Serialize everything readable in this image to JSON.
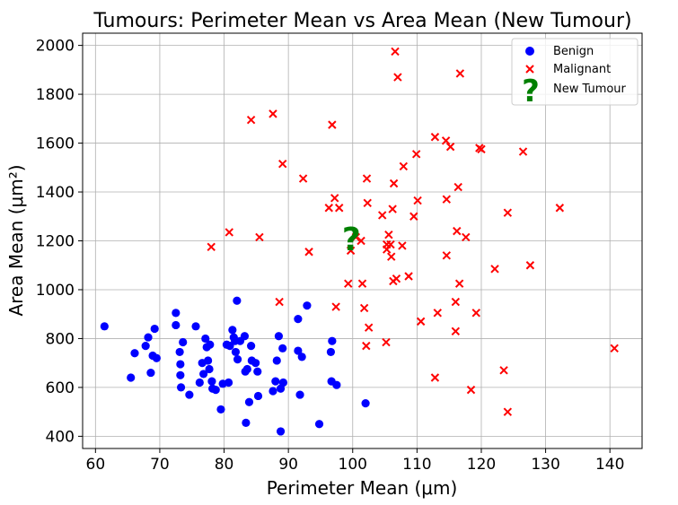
{
  "chart_data": {
    "type": "scatter",
    "title": "Tumours: Perimeter Mean vs Area Mean (New Tumour)",
    "xlabel": "Perimeter Mean (μm)",
    "ylabel": "Area Mean (μm²)",
    "xlim": [
      58,
      145
    ],
    "ylim": [
      350,
      2050
    ],
    "xticks": [
      60,
      70,
      80,
      90,
      100,
      110,
      120,
      130,
      140
    ],
    "yticks": [
      400,
      600,
      800,
      1000,
      1200,
      1400,
      1600,
      1800,
      2000
    ],
    "grid": true,
    "legend_position": "top-right",
    "series": [
      {
        "name": "Benign",
        "marker": "circle",
        "color": "#0000ff",
        "points": [
          [
            61.4,
            850
          ],
          [
            65.5,
            640
          ],
          [
            66.1,
            740
          ],
          [
            67.8,
            770
          ],
          [
            68.2,
            805
          ],
          [
            68.6,
            660
          ],
          [
            68.9,
            730
          ],
          [
            69.2,
            840
          ],
          [
            69.5,
            720
          ],
          [
            72.5,
            905
          ],
          [
            72.5,
            855
          ],
          [
            73.1,
            745
          ],
          [
            73.2,
            695
          ],
          [
            73.2,
            650
          ],
          [
            73.3,
            600
          ],
          [
            73.6,
            785
          ],
          [
            74.6,
            570
          ],
          [
            75.6,
            850
          ],
          [
            76.2,
            620
          ],
          [
            76.6,
            700
          ],
          [
            76.8,
            655
          ],
          [
            77.1,
            800
          ],
          [
            77.3,
            765
          ],
          [
            77.5,
            710
          ],
          [
            77.7,
            675
          ],
          [
            77.8,
            775
          ],
          [
            78.1,
            625
          ],
          [
            78.2,
            595
          ],
          [
            78.7,
            590
          ],
          [
            79.5,
            510
          ],
          [
            79.8,
            615
          ],
          [
            80.4,
            775
          ],
          [
            80.7,
            620
          ],
          [
            80.9,
            770
          ],
          [
            81.3,
            835
          ],
          [
            81.5,
            805
          ],
          [
            81.7,
            790
          ],
          [
            81.8,
            745
          ],
          [
            82.0,
            955
          ],
          [
            82.1,
            715
          ],
          [
            82.5,
            790
          ],
          [
            83.2,
            810
          ],
          [
            83.3,
            665
          ],
          [
            83.4,
            455
          ],
          [
            83.6,
            675
          ],
          [
            83.9,
            540
          ],
          [
            84.2,
            770
          ],
          [
            84.3,
            710
          ],
          [
            84.9,
            700
          ],
          [
            85.2,
            665
          ],
          [
            85.3,
            565
          ],
          [
            87.6,
            585
          ],
          [
            88.0,
            625
          ],
          [
            88.2,
            710
          ],
          [
            88.5,
            810
          ],
          [
            88.8,
            420
          ],
          [
            88.8,
            595
          ],
          [
            89.1,
            760
          ],
          [
            89.2,
            620
          ],
          [
            91.5,
            880
          ],
          [
            91.5,
            750
          ],
          [
            91.8,
            570
          ],
          [
            92.1,
            725
          ],
          [
            92.9,
            935
          ],
          [
            94.8,
            450
          ],
          [
            96.6,
            745
          ],
          [
            96.7,
            625
          ],
          [
            96.8,
            790
          ],
          [
            97.5,
            610
          ],
          [
            102.0,
            535
          ]
        ]
      },
      {
        "name": "Malignant",
        "marker": "x",
        "color": "#ff0000",
        "points": [
          [
            78.0,
            1175
          ],
          [
            80.8,
            1235
          ],
          [
            84.2,
            1695
          ],
          [
            85.5,
            1215
          ],
          [
            87.6,
            1720
          ],
          [
            88.6,
            950
          ],
          [
            89.1,
            1515
          ],
          [
            92.3,
            1455
          ],
          [
            93.2,
            1155
          ],
          [
            96.3,
            1335
          ],
          [
            96.8,
            1675
          ],
          [
            97.2,
            1375
          ],
          [
            97.4,
            930
          ],
          [
            97.9,
            1335
          ],
          [
            99.3,
            1025
          ],
          [
            99.7,
            1160
          ],
          [
            100.5,
            1215
          ],
          [
            101.3,
            1200
          ],
          [
            101.5,
            1025
          ],
          [
            101.8,
            925
          ],
          [
            102.1,
            770
          ],
          [
            102.2,
            1455
          ],
          [
            102.3,
            1355
          ],
          [
            102.5,
            845
          ],
          [
            104.6,
            1305
          ],
          [
            105.2,
            785
          ],
          [
            105.3,
            1185
          ],
          [
            105.3,
            1165
          ],
          [
            105.6,
            1225
          ],
          [
            105.9,
            1185
          ],
          [
            106.0,
            1135
          ],
          [
            106.2,
            1330
          ],
          [
            106.3,
            1035
          ],
          [
            106.4,
            1435
          ],
          [
            106.6,
            1975
          ],
          [
            106.8,
            1045
          ],
          [
            107.0,
            1870
          ],
          [
            107.7,
            1180
          ],
          [
            107.9,
            1505
          ],
          [
            108.7,
            1055
          ],
          [
            109.5,
            1300
          ],
          [
            109.9,
            1555
          ],
          [
            110.1,
            1365
          ],
          [
            110.6,
            870
          ],
          [
            112.8,
            640
          ],
          [
            112.8,
            1625
          ],
          [
            113.2,
            905
          ],
          [
            114.5,
            1610
          ],
          [
            114.6,
            1370
          ],
          [
            114.6,
            1140
          ],
          [
            115.2,
            1585
          ],
          [
            116.0,
            950
          ],
          [
            116.0,
            830
          ],
          [
            116.2,
            1240
          ],
          [
            116.4,
            1420
          ],
          [
            116.6,
            1025
          ],
          [
            116.7,
            1885
          ],
          [
            117.6,
            1215
          ],
          [
            118.4,
            590
          ],
          [
            119.2,
            905
          ],
          [
            119.7,
            1580
          ],
          [
            120.0,
            1575
          ],
          [
            122.1,
            1085
          ],
          [
            123.5,
            670
          ],
          [
            124.1,
            500
          ],
          [
            124.1,
            1315
          ],
          [
            126.5,
            1565
          ],
          [
            127.6,
            1100
          ],
          [
            132.2,
            1335
          ],
          [
            140.7,
            760
          ]
        ]
      },
      {
        "name": "New Tumour",
        "marker": "?",
        "color": "#008000",
        "points": [
          [
            99.8,
            1205
          ]
        ]
      }
    ]
  }
}
